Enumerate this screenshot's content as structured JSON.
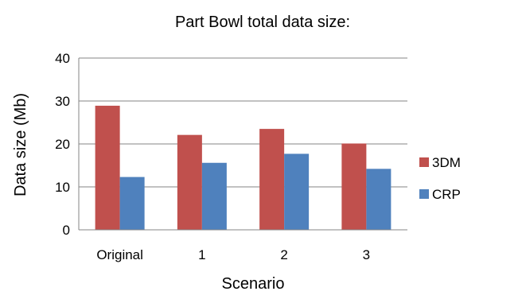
{
  "chart_data": {
    "type": "bar",
    "title": "Part Bowl total data size:",
    "xlabel": "Scenario",
    "ylabel": "Data size (Mb)",
    "categories": [
      "Original",
      "1",
      "2",
      "3"
    ],
    "series": [
      {
        "name": "3DM",
        "values": [
          28.9,
          22.1,
          23.5,
          20.1
        ],
        "color": "#c0504d"
      },
      {
        "name": "CRP",
        "values": [
          12.3,
          15.6,
          17.7,
          14.2
        ],
        "color": "#4f81bd"
      }
    ],
    "ylim": [
      0,
      40
    ],
    "yticks": [
      "0",
      "10",
      "20",
      "30",
      "40"
    ],
    "grid": true,
    "legend_position": "right"
  }
}
